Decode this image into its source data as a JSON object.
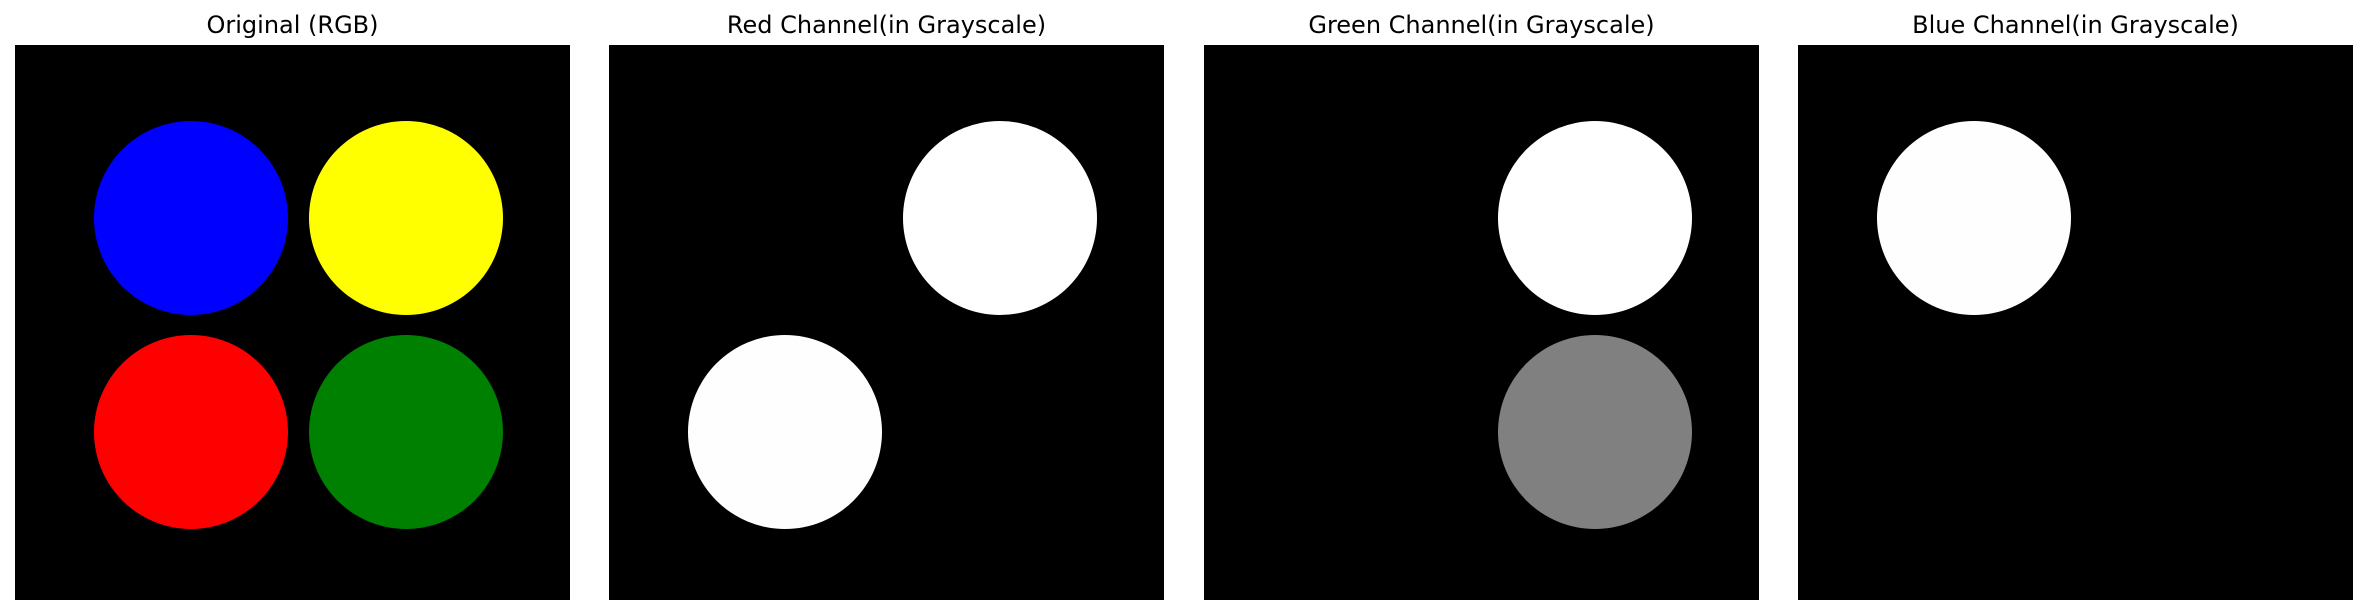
{
  "panels": [
    {
      "title": "Original (RGB)",
      "circles": {
        "top_left": "#0000ff",
        "top_right": "#ffff00",
        "bottom_left": "#ff0000",
        "bottom_right": "#008000"
      }
    },
    {
      "title": "Red Channel(in Grayscale)",
      "circles": {
        "top_left": "#000000",
        "top_right": "#ffffff",
        "bottom_left": "#fefefe",
        "bottom_right": "#000000"
      }
    },
    {
      "title": "Green Channel(in Grayscale)",
      "circles": {
        "top_left": "#000000",
        "top_right": "#ffffff",
        "bottom_left": "#000000",
        "bottom_right": "#808080"
      }
    },
    {
      "title": "Blue Channel(in Grayscale)",
      "circles": {
        "top_left": "#fefefe",
        "top_right": "#000000",
        "bottom_left": "#000000",
        "bottom_right": "#000000"
      }
    }
  ]
}
